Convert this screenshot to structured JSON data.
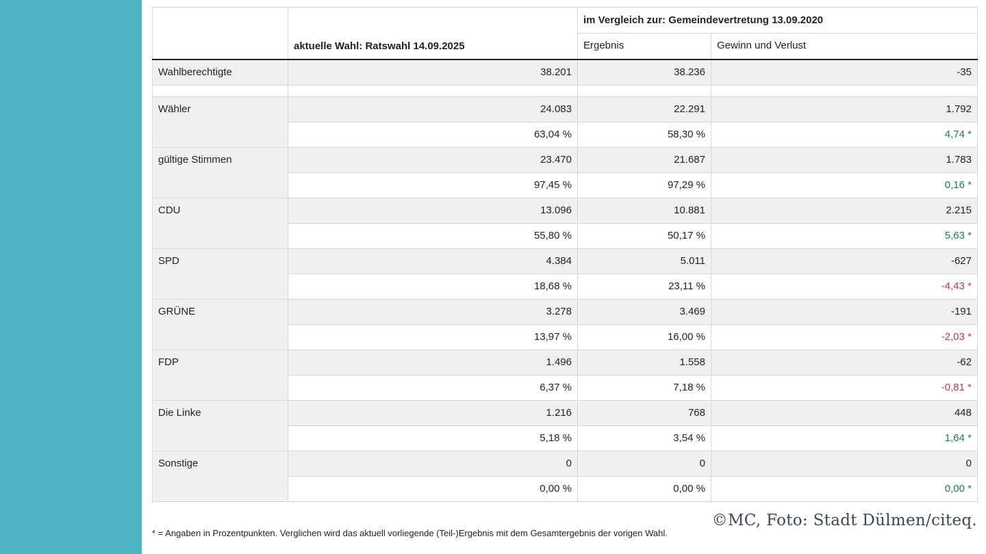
{
  "sidebar": {
    "accent_color": "#4db5c2"
  },
  "table": {
    "headers": {
      "current": "aktuelle Wahl: Ratswahl 14.09.2025",
      "comparison": "im Vergleich zur: Gemeindevertretung 13.09.2020",
      "result": "Ergebnis",
      "gain_loss": "Gewinn und Verlust"
    },
    "rows": [
      {
        "label": "Wahlberechtigte",
        "current": "38.201",
        "result": "38.236",
        "diff": "-35",
        "pct_current": "",
        "pct_result": "",
        "pct_diff": "",
        "pct_trend": ""
      },
      {
        "label": "Wähler",
        "current": "24.083",
        "result": "22.291",
        "diff": "1.792",
        "pct_current": "63,04 %",
        "pct_result": "58,30 %",
        "pct_diff": "4,74 *",
        "pct_trend": "positive"
      },
      {
        "label": "gültige Stimmen",
        "current": "23.470",
        "result": "21.687",
        "diff": "1.783",
        "pct_current": "97,45 %",
        "pct_result": "97,29 %",
        "pct_diff": "0,16 *",
        "pct_trend": "positive"
      },
      {
        "label": "CDU",
        "current": "13.096",
        "result": "10.881",
        "diff": "2.215",
        "pct_current": "55,80 %",
        "pct_result": "50,17 %",
        "pct_diff": "5,63 *",
        "pct_trend": "positive"
      },
      {
        "label": "SPD",
        "current": "4.384",
        "result": "5.011",
        "diff": "-627",
        "pct_current": "18,68 %",
        "pct_result": "23,11 %",
        "pct_diff": "-4,43 *",
        "pct_trend": "negative"
      },
      {
        "label": "GRÜNE",
        "current": "3.278",
        "result": "3.469",
        "diff": "-191",
        "pct_current": "13,97 %",
        "pct_result": "16,00 %",
        "pct_diff": "-2,03 *",
        "pct_trend": "negative"
      },
      {
        "label": "FDP",
        "current": "1.496",
        "result": "1.558",
        "diff": "-62",
        "pct_current": "6,37 %",
        "pct_result": "7,18 %",
        "pct_diff": "-0,81 *",
        "pct_trend": "negative"
      },
      {
        "label": "Die Linke",
        "current": "1.216",
        "result": "768",
        "diff": "448",
        "pct_current": "5,18 %",
        "pct_result": "3,54 %",
        "pct_diff": "1,64 *",
        "pct_trend": "positive"
      },
      {
        "label": "Sonstige",
        "current": "0",
        "result": "0",
        "diff": "0",
        "pct_current": "0,00 %",
        "pct_result": "0,00 %",
        "pct_diff": "0,00 *",
        "pct_trend": "positive"
      }
    ]
  },
  "footnote": "* = Angaben in Prozentpunkten. Verglichen wird das aktuell vorliegende (Teil-)Ergebnis mit dem Gesamtergebnis der vorigen Wahl.",
  "credit": "©MC, Foto: Stadt Dülmen/citeq.",
  "colors": {
    "positive": "#1e7a55",
    "negative": "#c0394b"
  }
}
